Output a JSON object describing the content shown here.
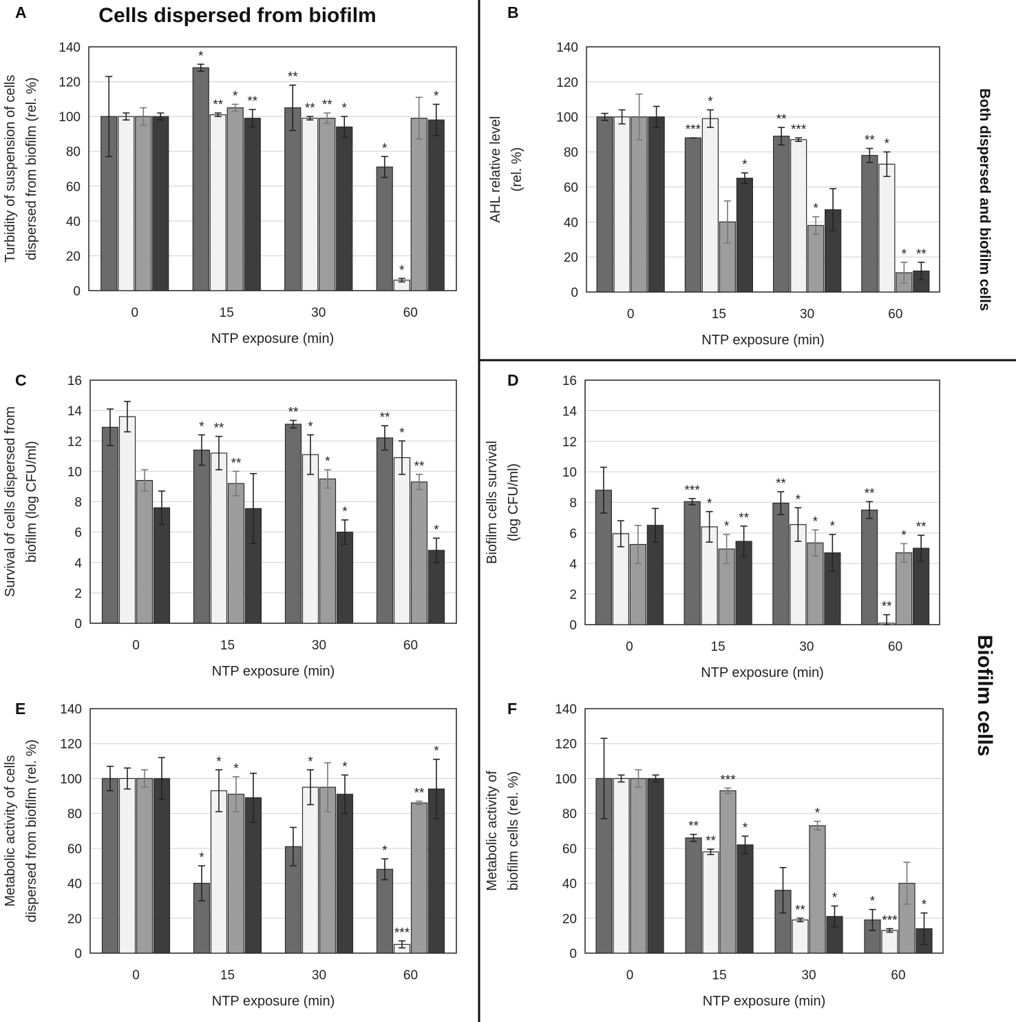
{
  "figure": {
    "heading": "Cells dispersed from biofilm",
    "side_label_top": "Both dispersed and biofilm cells",
    "side_label_bottom": "Biofilm cells",
    "series_colors": [
      "#6b6b6b",
      "#f2f2f2",
      "#9d9d9d",
      "#3d3d3d"
    ],
    "grid_color": "#d9d9d9"
  },
  "chart_data": [
    {
      "panel": "A",
      "type": "bar",
      "categories": [
        "0",
        "15",
        "30",
        "60"
      ],
      "xlabel": "NTP exposure (min)",
      "ylabel": [
        "Turbidity of suspension of cells",
        "dispersed from biofilm (rel. %)"
      ],
      "ylim": [
        0,
        140
      ],
      "yticks": [
        0,
        20,
        40,
        60,
        80,
        100,
        120,
        140
      ],
      "series": [
        {
          "values": [
            100,
            128,
            105,
            71
          ],
          "errors": [
            23,
            2,
            13,
            6
          ],
          "sig": [
            "",
            "*",
            "**",
            "*"
          ]
        },
        {
          "values": [
            100,
            101,
            99,
            6
          ],
          "errors": [
            2,
            1,
            1,
            1
          ],
          "sig": [
            "",
            "**",
            "**",
            "*"
          ]
        },
        {
          "values": [
            100,
            105,
            99,
            99
          ],
          "errors": [
            5,
            2,
            3,
            12
          ],
          "sig": [
            "",
            "*",
            "**",
            ""
          ]
        },
        {
          "values": [
            100,
            99,
            94,
            98
          ],
          "errors": [
            2,
            5,
            6,
            9
          ],
          "sig": [
            "",
            "**",
            "*",
            "*"
          ]
        }
      ]
    },
    {
      "panel": "B",
      "type": "bar",
      "categories": [
        "0",
        "15",
        "30",
        "60"
      ],
      "xlabel": "NTP exposure (min)",
      "ylabel": [
        "AHL relative level",
        "(rel. %)"
      ],
      "ylim": [
        0,
        140
      ],
      "yticks": [
        0,
        20,
        40,
        60,
        80,
        100,
        120,
        140
      ],
      "series": [
        {
          "values": [
            100,
            88,
            89,
            78
          ],
          "errors": [
            2,
            0,
            5,
            4
          ],
          "sig": [
            "",
            "***",
            "**",
            "**"
          ]
        },
        {
          "values": [
            100,
            99,
            87,
            73
          ],
          "errors": [
            4,
            5,
            1,
            7
          ],
          "sig": [
            "",
            "*",
            "***",
            "*"
          ]
        },
        {
          "values": [
            100,
            40,
            38,
            11
          ],
          "errors": [
            13,
            12,
            5,
            6
          ],
          "sig": [
            "",
            "",
            "*",
            "*"
          ]
        },
        {
          "values": [
            100,
            65,
            47,
            12
          ],
          "errors": [
            6,
            3,
            12,
            5
          ],
          "sig": [
            "",
            "*",
            "",
            "**"
          ]
        }
      ]
    },
    {
      "panel": "C",
      "type": "bar",
      "categories": [
        "0",
        "15",
        "30",
        "60"
      ],
      "xlabel": "NTP exposure (min)",
      "ylabel": [
        "Survival of cells dispersed from",
        "biofilm (log CFU/ml)"
      ],
      "ylim": [
        0,
        16
      ],
      "yticks": [
        0,
        2,
        4,
        6,
        8,
        10,
        12,
        14,
        16
      ],
      "series": [
        {
          "values": [
            12.9,
            11.4,
            13.1,
            12.2
          ],
          "errors": [
            1.2,
            1.0,
            0.25,
            0.8
          ],
          "sig": [
            "",
            "*",
            "**",
            "**"
          ]
        },
        {
          "values": [
            13.6,
            11.2,
            11.1,
            10.9
          ],
          "errors": [
            1.0,
            1.1,
            1.3,
            1.1
          ],
          "sig": [
            "",
            "**",
            "*",
            "*"
          ]
        },
        {
          "values": [
            9.4,
            9.2,
            9.5,
            9.3
          ],
          "errors": [
            0.7,
            0.8,
            0.6,
            0.5
          ],
          "sig": [
            "",
            "**",
            "*",
            "**"
          ]
        },
        {
          "values": [
            7.6,
            7.55,
            6.0,
            4.8
          ],
          "errors": [
            1.1,
            2.3,
            0.8,
            0.8
          ],
          "sig": [
            "",
            "",
            "*",
            "*"
          ]
        }
      ]
    },
    {
      "panel": "D",
      "type": "bar",
      "categories": [
        "0",
        "15",
        "30",
        "60"
      ],
      "xlabel": "NTP exposure (min)",
      "ylabel": [
        "Biofilm cells survival",
        "(log CFU/ml)"
      ],
      "ylim": [
        0,
        16
      ],
      "yticks": [
        0,
        2,
        4,
        6,
        8,
        10,
        12,
        14,
        16
      ],
      "series": [
        {
          "values": [
            8.8,
            8.05,
            7.95,
            7.5
          ],
          "errors": [
            1.5,
            0.2,
            0.75,
            0.55
          ],
          "sig": [
            "",
            "***",
            "**",
            "**"
          ]
        },
        {
          "values": [
            5.95,
            6.4,
            6.55,
            0.1
          ],
          "errors": [
            0.85,
            1.0,
            1.1,
            0.55
          ],
          "sig": [
            "",
            "*",
            "*",
            "**"
          ]
        },
        {
          "values": [
            5.25,
            4.95,
            5.35,
            4.7
          ],
          "errors": [
            1.25,
            0.95,
            0.85,
            0.6
          ],
          "sig": [
            "",
            "*",
            "*",
            "*"
          ]
        },
        {
          "values": [
            6.5,
            5.45,
            4.7,
            5.0
          ],
          "errors": [
            1.1,
            1.0,
            1.2,
            0.85
          ],
          "sig": [
            "",
            "**",
            "*",
            "**"
          ]
        }
      ]
    },
    {
      "panel": "E",
      "type": "bar",
      "categories": [
        "0",
        "15",
        "30",
        "60"
      ],
      "xlabel": "NTP exposure (min)",
      "ylabel": [
        "Metabolic activity of cells",
        "dispersed from biofilm (rel. %)"
      ],
      "ylim": [
        0,
        140
      ],
      "yticks": [
        0,
        20,
        40,
        60,
        80,
        100,
        120,
        140
      ],
      "series": [
        {
          "values": [
            100,
            40,
            61,
            48
          ],
          "errors": [
            7,
            10,
            11,
            6
          ],
          "sig": [
            "",
            "*",
            "",
            "*"
          ]
        },
        {
          "values": [
            100,
            93,
            95,
            5
          ],
          "errors": [
            6,
            12,
            10,
            2
          ],
          "sig": [
            "",
            "*",
            "*",
            "***"
          ]
        },
        {
          "values": [
            100,
            91,
            95,
            86
          ],
          "errors": [
            5,
            10,
            14,
            1
          ],
          "sig": [
            "",
            "*",
            "",
            "**"
          ]
        },
        {
          "values": [
            100,
            89,
            91,
            94
          ],
          "errors": [
            12,
            14,
            11,
            17
          ],
          "sig": [
            "",
            "",
            "*",
            "*"
          ]
        }
      ]
    },
    {
      "panel": "F",
      "type": "bar",
      "categories": [
        "0",
        "15",
        "30",
        "60"
      ],
      "xlabel": "NTP exposure (min)",
      "ylabel": [
        "Metabolic activity of",
        "biofilm cells (rel. %)"
      ],
      "ylim": [
        0,
        140
      ],
      "yticks": [
        0,
        20,
        40,
        60,
        80,
        100,
        120,
        140
      ],
      "series": [
        {
          "values": [
            100,
            66,
            36,
            19
          ],
          "errors": [
            23,
            2,
            13,
            6
          ],
          "sig": [
            "",
            "**",
            "",
            "*"
          ]
        },
        {
          "values": [
            100,
            58,
            19,
            13
          ],
          "errors": [
            2,
            1.5,
            1,
            1
          ],
          "sig": [
            "",
            "**",
            "**",
            "***"
          ]
        },
        {
          "values": [
            100,
            93,
            73,
            40
          ],
          "errors": [
            5,
            1.5,
            2.5,
            12
          ],
          "sig": [
            "",
            "***",
            "*",
            ""
          ]
        },
        {
          "values": [
            100,
            62,
            21,
            14
          ],
          "errors": [
            2,
            5,
            6,
            9
          ],
          "sig": [
            "",
            "*",
            "*",
            "*"
          ]
        }
      ]
    }
  ]
}
